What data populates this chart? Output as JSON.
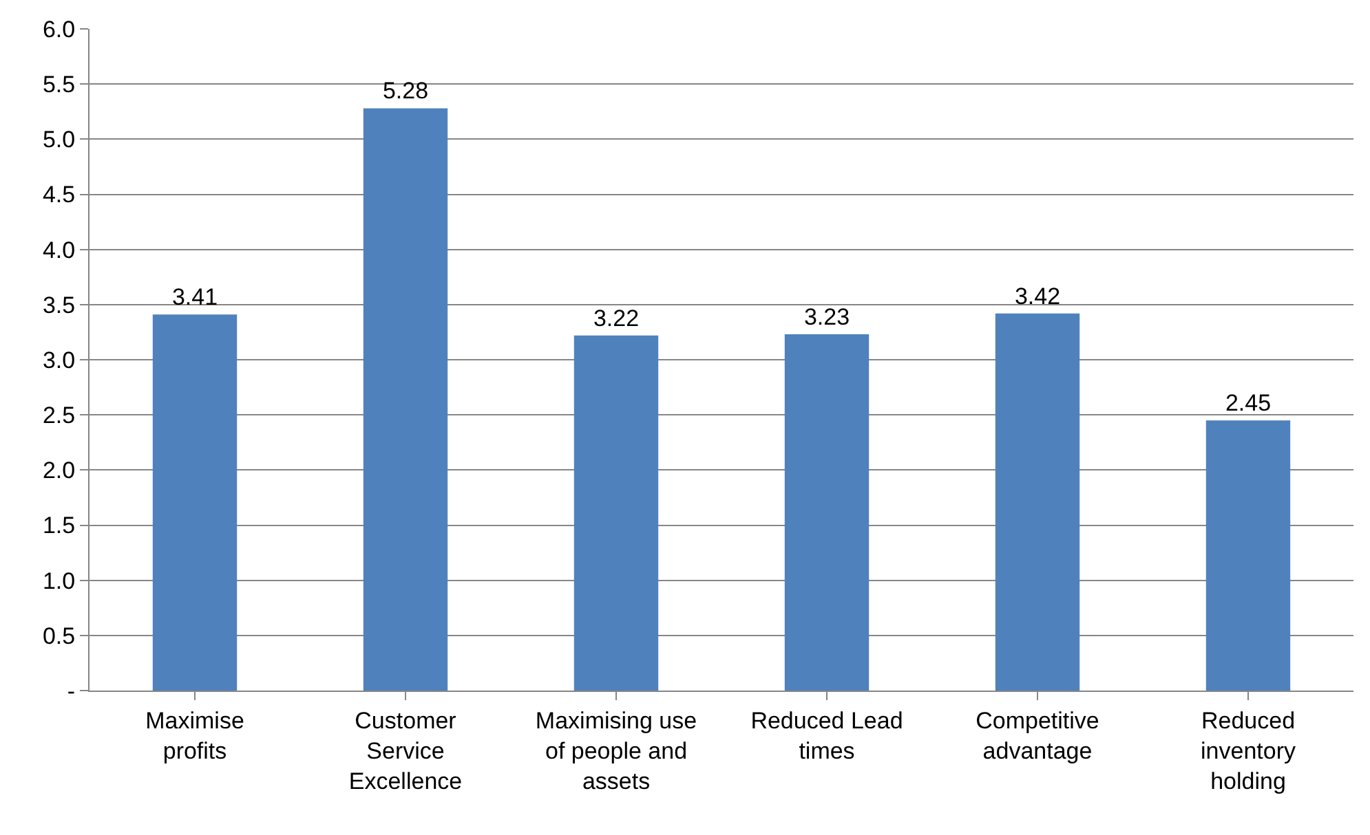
{
  "chart_data": {
    "type": "bar",
    "categories": [
      "Maximise profits",
      "Customer Service Excellence",
      "Maximising use of people and assets",
      "Reduced Lead times",
      "Competitive advantage",
      "Reduced inventory holding"
    ],
    "values": [
      3.41,
      5.28,
      3.22,
      3.23,
      3.42,
      2.45
    ],
    "color": "#4f81bd",
    "ylim": [
      0,
      6
    ],
    "yticks": [
      {
        "value": 0,
        "label": "-"
      },
      {
        "value": 0.5,
        "label": "0.5"
      },
      {
        "value": 1,
        "label": "1.0"
      },
      {
        "value": 1.5,
        "label": "1.5"
      },
      {
        "value": 2,
        "label": "2.0"
      },
      {
        "value": 2.5,
        "label": "2.5"
      },
      {
        "value": 3,
        "label": "3.0"
      },
      {
        "value": 3.5,
        "label": "3.5"
      },
      {
        "value": 4,
        "label": "4.0"
      },
      {
        "value": 4.5,
        "label": "4.5"
      },
      {
        "value": 5,
        "label": "5.0"
      },
      {
        "value": 5.5,
        "label": "5.5"
      },
      {
        "value": 6,
        "label": "6.0"
      }
    ],
    "grid": "y",
    "data_labels": true
  }
}
